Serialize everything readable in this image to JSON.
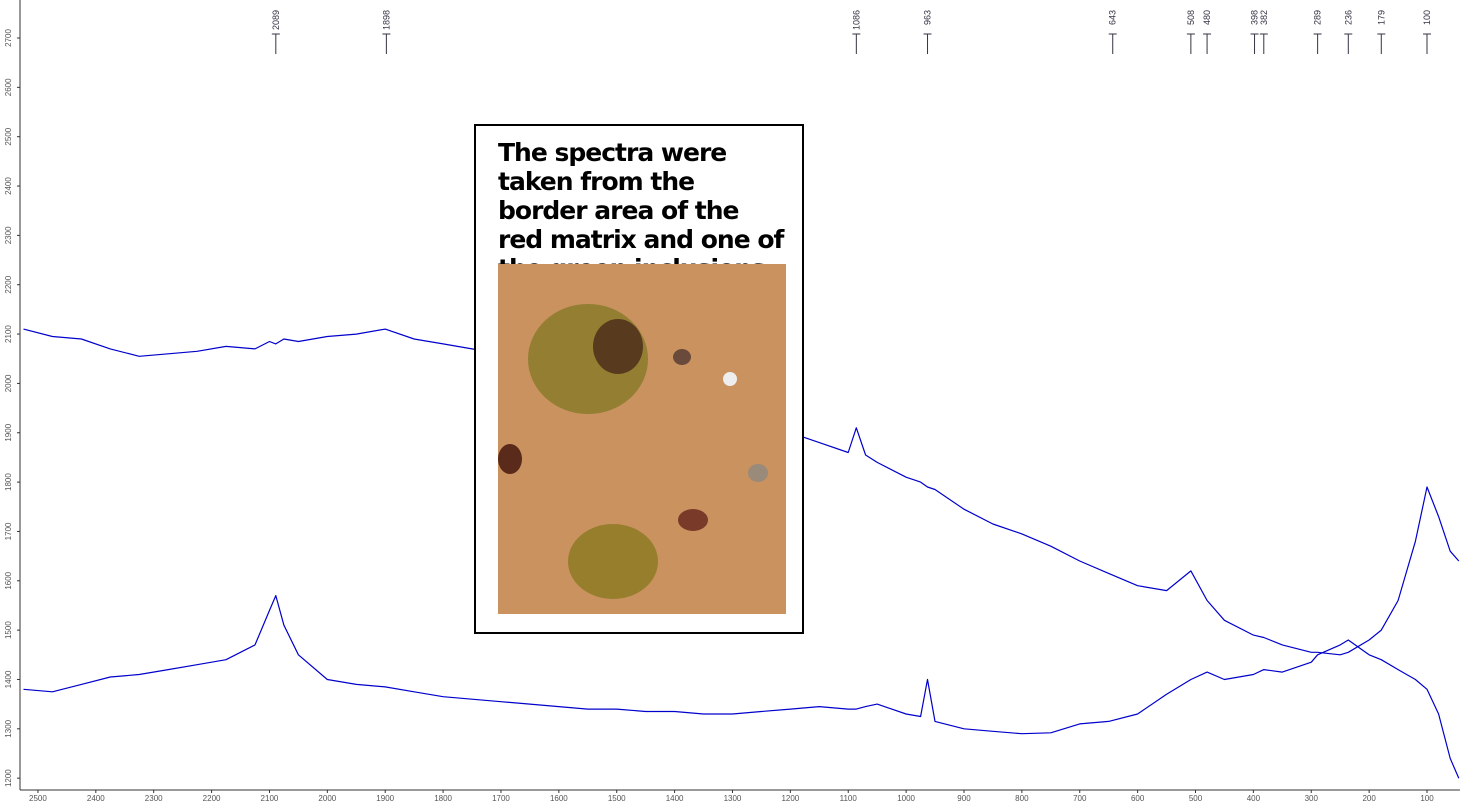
{
  "chart_data": {
    "type": "line",
    "x": [
      2525,
      2475,
      2425,
      2375,
      2325,
      2275,
      2225,
      2175,
      2125,
      2100,
      2089,
      2075,
      2050,
      2000,
      1950,
      1900,
      1850,
      1800,
      1750,
      1700,
      1650,
      1600,
      1550,
      1500,
      1450,
      1400,
      1350,
      1300,
      1250,
      1200,
      1150,
      1100,
      1086,
      1070,
      1050,
      1000,
      975,
      963,
      950,
      900,
      850,
      800,
      750,
      700,
      650,
      600,
      550,
      508,
      480,
      450,
      400,
      382,
      350,
      300,
      289,
      250,
      236,
      200,
      179,
      150,
      120,
      100,
      80,
      60,
      45
    ],
    "series": [
      {
        "color": "#0000cc",
        "values": [
          2110,
          2095,
          2090,
          2070,
          2055,
          2060,
          2065,
          2075,
          2070,
          2085,
          2080,
          2090,
          2085,
          2095,
          2100,
          2110,
          2090,
          2080,
          2070,
          2060,
          2040,
          2020,
          2000,
          1985,
          1970,
          1955,
          1940,
          1930,
          1915,
          1900,
          1880,
          1860,
          1910,
          1855,
          1840,
          1810,
          1800,
          1790,
          1785,
          1745,
          1715,
          1695,
          1670,
          1640,
          1615,
          1590,
          1580,
          1620,
          1560,
          1520,
          1490,
          1485,
          1470,
          1455,
          1455,
          1450,
          1455,
          1480,
          1500,
          1560,
          1680,
          1790,
          1730,
          1660,
          1640
        ]
      },
      {
        "color": "#0000cc",
        "values": [
          1380,
          1375,
          1390,
          1405,
          1410,
          1420,
          1430,
          1440,
          1470,
          1540,
          1570,
          1510,
          1450,
          1400,
          1390,
          1385,
          1375,
          1365,
          1360,
          1355,
          1350,
          1345,
          1340,
          1340,
          1335,
          1335,
          1330,
          1330,
          1335,
          1340,
          1345,
          1340,
          1340,
          1345,
          1350,
          1330,
          1325,
          1400,
          1315,
          1300,
          1295,
          1290,
          1292,
          1310,
          1315,
          1330,
          1370,
          1400,
          1415,
          1400,
          1410,
          1420,
          1415,
          1435,
          1450,
          1470,
          1480,
          1450,
          1440,
          1420,
          1400,
          1380,
          1330,
          1240,
          1200
        ]
      }
    ],
    "xlim": [
      2531,
      43
    ],
    "ylim": [
      1176,
      2777
    ],
    "xticks": [
      2500,
      2400,
      2300,
      2200,
      2100,
      2000,
      1900,
      1800,
      1700,
      1600,
      1500,
      1400,
      1300,
      1200,
      1100,
      1000,
      900,
      800,
      700,
      600,
      500,
      400,
      300,
      200,
      100
    ],
    "yticks": [
      1200,
      1300,
      1400,
      1500,
      1600,
      1700,
      1800,
      1900,
      2000,
      2100,
      2200,
      2300,
      2400,
      2500,
      2600,
      2700
    ],
    "peaks": [
      2089,
      1898,
      1086,
      963,
      643,
      508,
      480,
      398,
      382,
      289,
      236,
      179,
      100
    ],
    "annotation": "The spectra were taken from the border area of the red matrix and one of the green inclusions"
  }
}
